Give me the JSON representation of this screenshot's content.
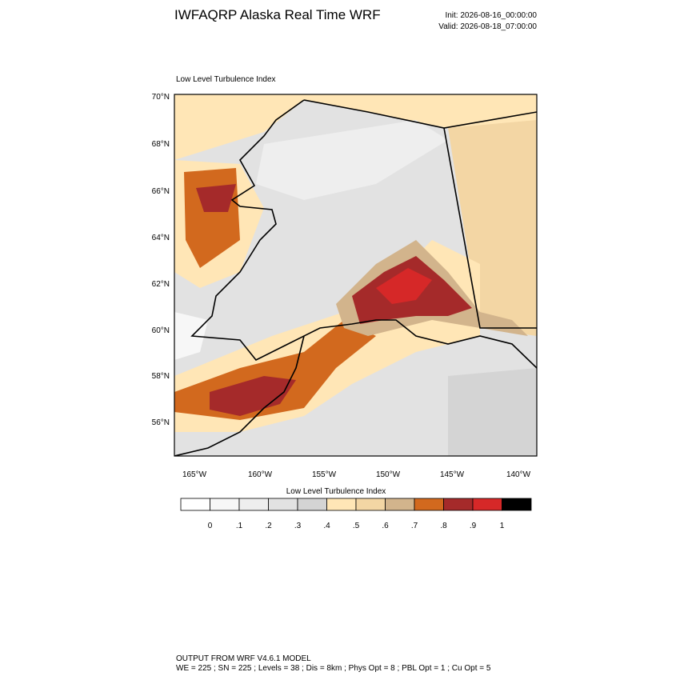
{
  "header": {
    "title": "IWFAQRP Alaska Real Time WRF",
    "init": "Init: 2026-08-16_00:00:00",
    "valid": "Valid: 2026-08-18_07:00:00"
  },
  "map": {
    "title": "Low Level Turbulence Index",
    "lat_labels": [
      "70°N",
      "68°N",
      "66°N",
      "64°N",
      "62°N",
      "60°N",
      "58°N",
      "56°N"
    ],
    "lon_labels": [
      "165°W",
      "160°W",
      "155°W",
      "150°W",
      "145°W",
      "140°W"
    ]
  },
  "colorbar": {
    "title": "Low Level Turbulence Index",
    "colors": [
      "#ffffff",
      "#f7f7f7",
      "#eeeeee",
      "#e2e2e2",
      "#d4d4d4",
      "#ffe6b6",
      "#f3d6a4",
      "#d2b48c",
      "#d2691e",
      "#a52a2a",
      "#d62828",
      "#000000"
    ],
    "labels": [
      "0",
      ".1",
      ".2",
      ".3",
      ".4",
      ".5",
      ".6",
      ".7",
      ".8",
      ".9",
      "1"
    ]
  },
  "footer": {
    "line1": "OUTPUT FROM WRF V4.6.1 MODEL",
    "line2": "WE = 225 ; SN = 225 ; Levels = 38 ; Dis = 8km ; Phys Opt = 8 ; PBL Opt = 1 ; Cu Opt = 5"
  }
}
